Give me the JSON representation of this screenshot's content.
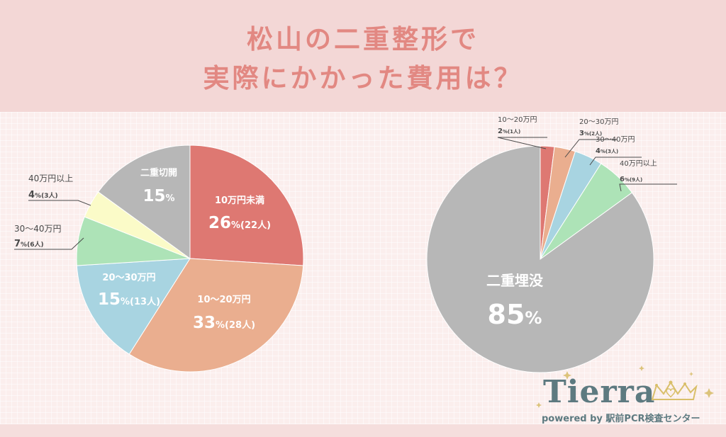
{
  "header": {
    "title_line1": "松山の二重整形で",
    "title_line2": "実際にかかった費用は？"
  },
  "colors": {
    "red": "#de7872",
    "orange": "#eaae8f",
    "blue": "#a8d4e1",
    "green": "#ade3b7",
    "yellow": "#fbfbc8",
    "gray": "#b7b7b7"
  },
  "chart_data": [
    {
      "type": "pie",
      "slices": [
        {
          "label": "10万円未満",
          "value": 26,
          "unit": "%",
          "count": "(22人)",
          "color": "#de7872"
        },
        {
          "label": "10〜20万円",
          "value": 33,
          "unit": "%",
          "count": "(28人)",
          "color": "#eaae8f"
        },
        {
          "label": "20〜30万円",
          "value": 15,
          "unit": "%",
          "count": "(13人)",
          "color": "#a8d4e1"
        },
        {
          "label": "30〜40万円",
          "value": 7,
          "unit": "%",
          "count": "(6人)",
          "color": "#ade3b7"
        },
        {
          "label": "40万円以上",
          "value": 4,
          "unit": "%",
          "count": "(3人)",
          "color": "#fbfbc8"
        },
        {
          "label": "二重切開",
          "value": 15,
          "unit": "%",
          "count": "",
          "color": "#b7b7b7"
        }
      ]
    },
    {
      "type": "pie",
      "slices": [
        {
          "label": "10〜20万円",
          "value": 2,
          "unit": "%",
          "count": "(1人)",
          "color": "#de7872"
        },
        {
          "label": "20〜30万円",
          "value": 3,
          "unit": "%",
          "count": "(2人)",
          "color": "#eaae8f"
        },
        {
          "label": "30〜40万円",
          "value": 4,
          "unit": "%",
          "count": "(3人)",
          "color": "#a8d4e1"
        },
        {
          "label": "40万円以上",
          "value": 6,
          "unit": "%",
          "count": "(9人)",
          "color": "#ade3b7"
        },
        {
          "label": "二重埋没",
          "value": 85,
          "unit": "%",
          "count": "",
          "color": "#b7b7b7"
        }
      ]
    }
  ],
  "logo": {
    "name": "Tierra",
    "tagline": "powered by 駅前PCR検査センター"
  }
}
